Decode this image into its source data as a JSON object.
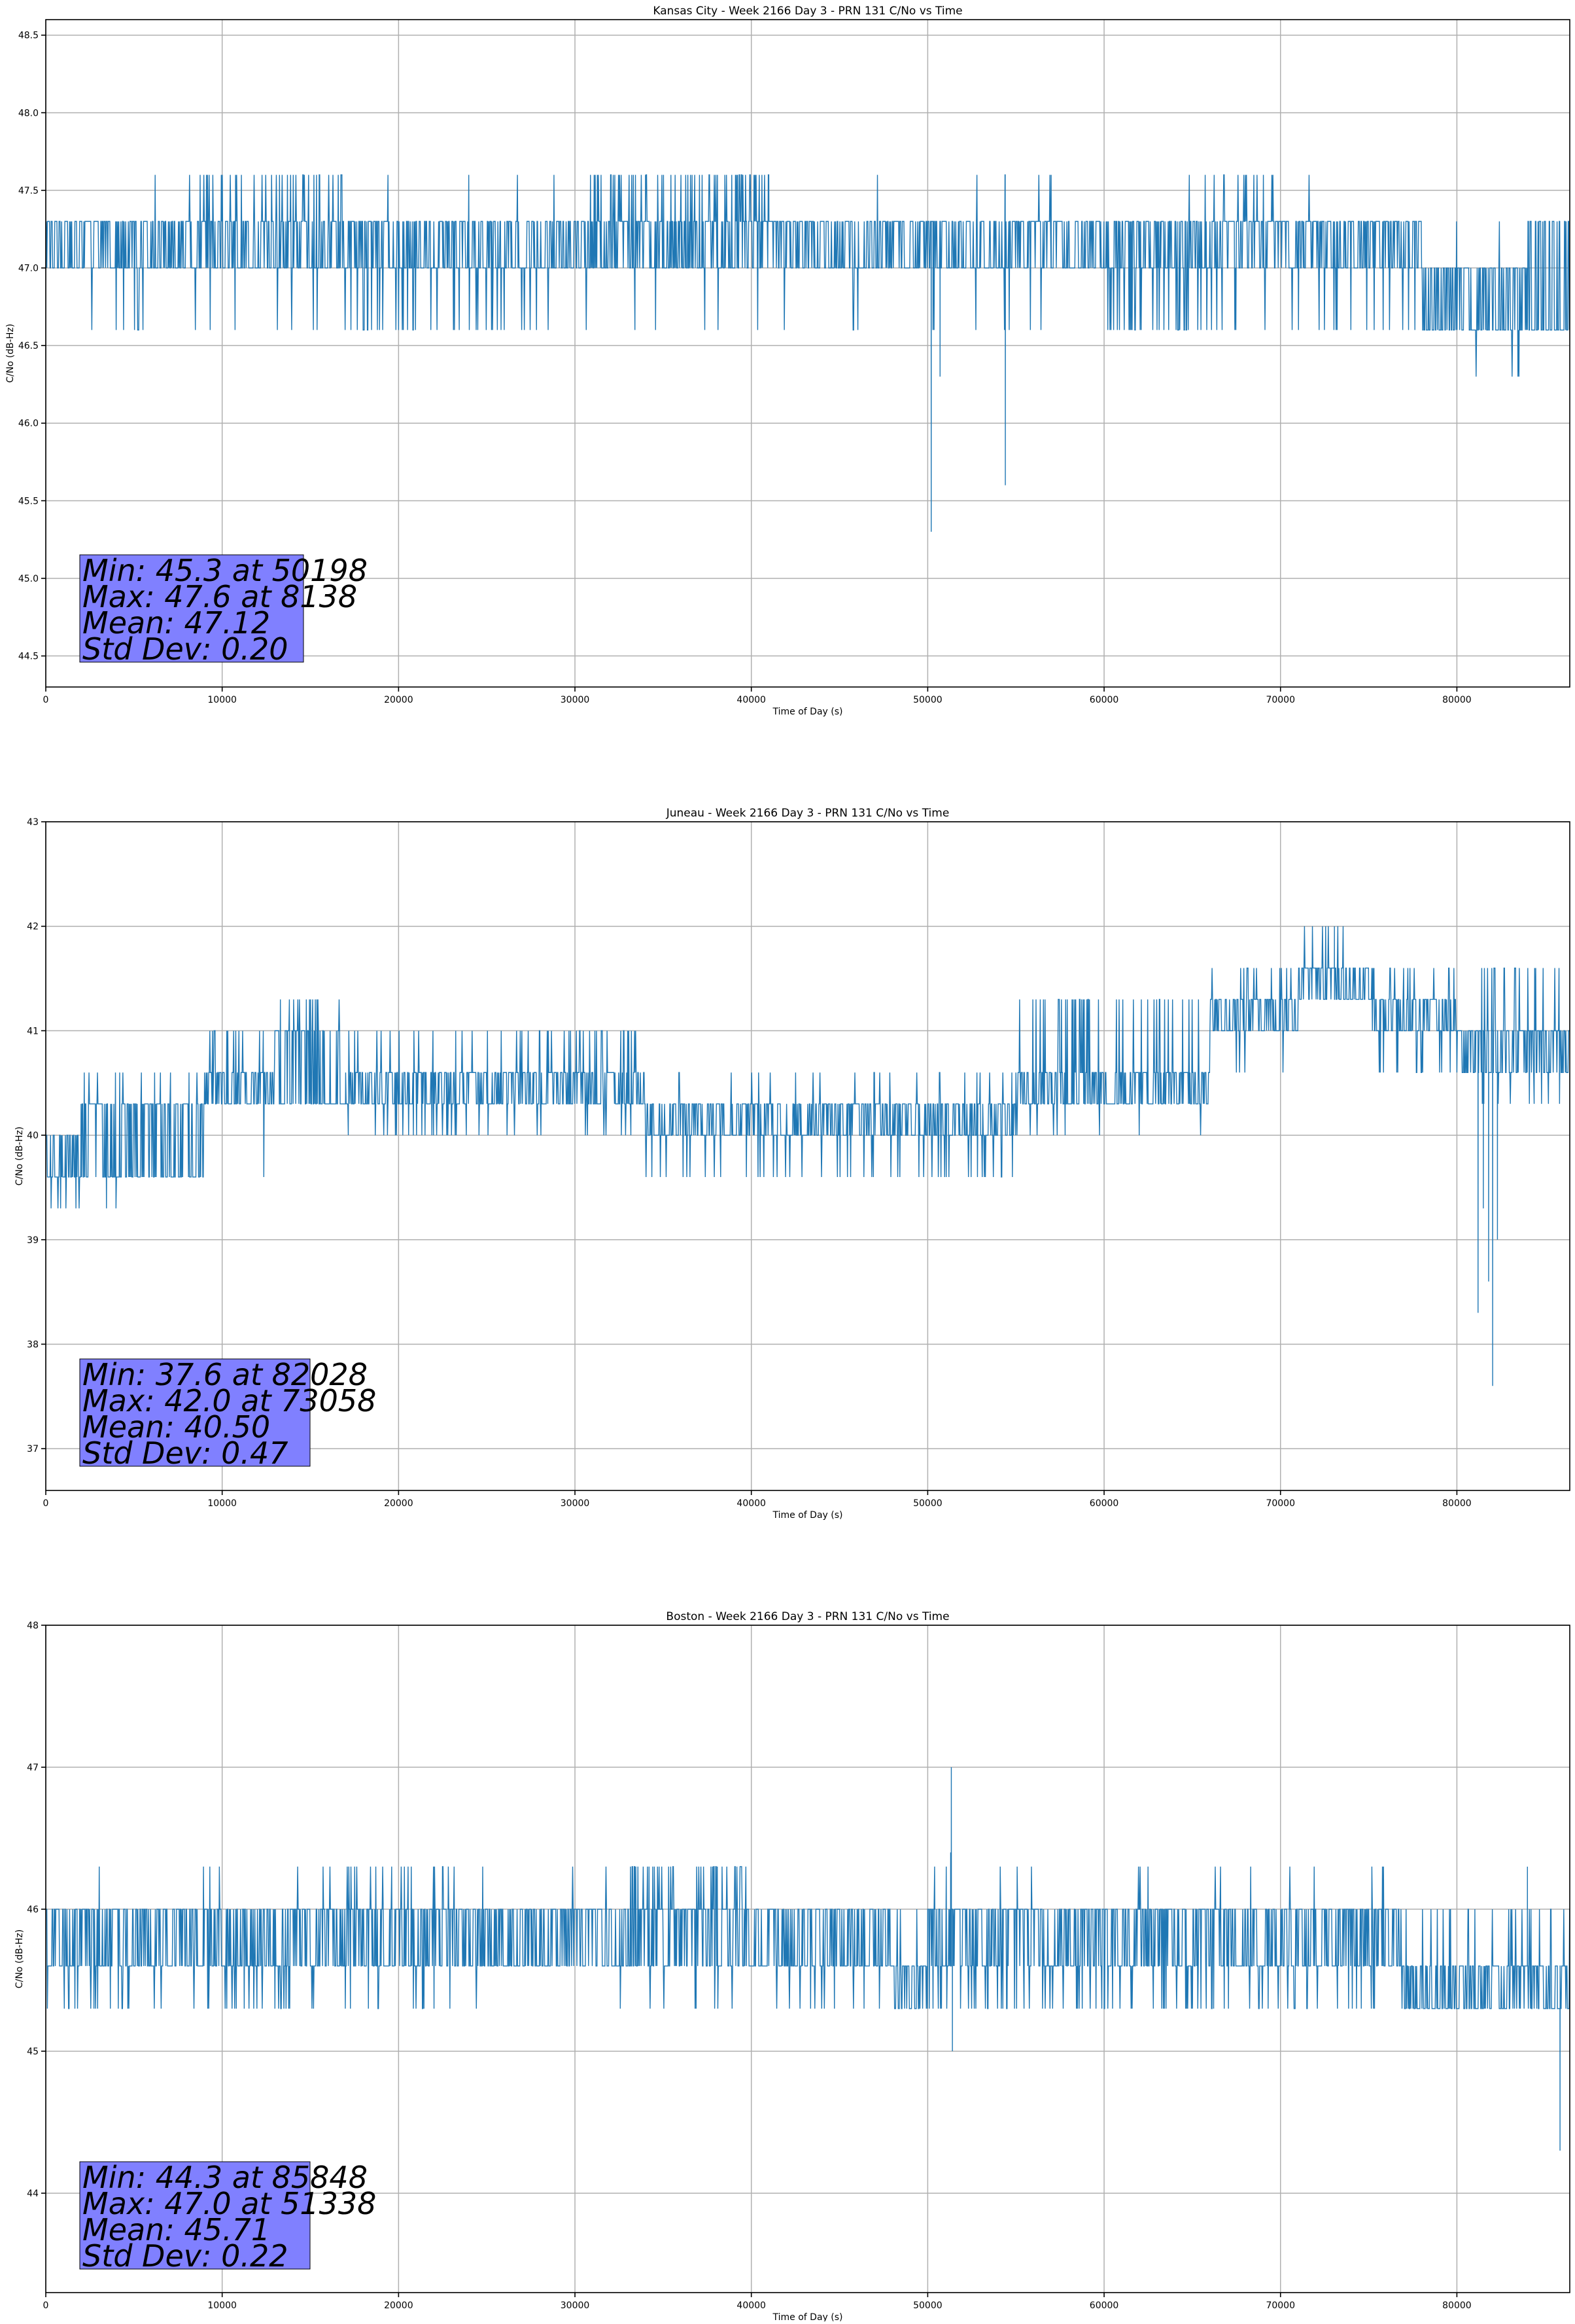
{
  "chart_data": [
    {
      "type": "line",
      "title": "Kansas City - Week 2166 Day 3 - PRN 131 C/No vs Time",
      "xlabel": "Time of Day (s)",
      "ylabel": "C/No (dB-Hz)",
      "xlim": [
        0,
        86400
      ],
      "ylim": [
        44.3,
        48.6
      ],
      "xticks": [
        0,
        10000,
        20000,
        30000,
        40000,
        50000,
        60000,
        70000,
        80000
      ],
      "yticks": [
        44.5,
        45.0,
        45.5,
        46.0,
        46.5,
        47.0,
        47.5,
        48.0,
        48.5
      ],
      "ytick_labels": [
        "44.5",
        "45.0",
        "45.5",
        "46.0",
        "46.5",
        "47.0",
        "47.5",
        "48.0",
        "48.5"
      ],
      "grid": true,
      "color": "#1f77b4",
      "series_profile": {
        "segments": [
          {
            "x": [
              0,
              5000
            ],
            "low": 47.0,
            "high": 47.3,
            "down": 46.6,
            "up": 47.6,
            "down_rate": 0.02,
            "up_rate": 0.0
          },
          {
            "x": [
              5000,
              8000
            ],
            "low": 47.0,
            "high": 47.3,
            "down": 46.6,
            "up": 47.6,
            "down_rate": 0.3,
            "up_rate": 0.05
          },
          {
            "x": [
              8000,
              17000
            ],
            "low": 47.0,
            "high": 47.3,
            "down": 46.6,
            "up": 47.6,
            "down_rate": 0.08,
            "up_rate": 0.45
          },
          {
            "x": [
              17000,
              22000
            ],
            "low": 47.0,
            "high": 47.3,
            "down": 46.6,
            "up": 47.6,
            "down_rate": 0.4,
            "up_rate": 0.05
          },
          {
            "x": [
              22000,
              31000
            ],
            "low": 47.0,
            "high": 47.3,
            "down": 46.6,
            "up": 47.6,
            "down_rate": 0.25,
            "up_rate": 0.03
          },
          {
            "x": [
              31000,
              41000
            ],
            "low": 47.0,
            "high": 47.3,
            "down": 46.6,
            "up": 47.6,
            "down_rate": 0.05,
            "up_rate": 0.75
          },
          {
            "x": [
              41000,
              60000
            ],
            "low": 47.0,
            "high": 47.3,
            "down": 46.6,
            "up": 47.6,
            "down_rate": 0.06,
            "up_rate": 0.02
          },
          {
            "x": [
              60000,
              66000
            ],
            "low": 47.0,
            "high": 47.3,
            "down": 46.6,
            "up": 47.6,
            "down_rate": 0.55,
            "up_rate": 0.05
          },
          {
            "x": [
              66000,
              70000
            ],
            "low": 47.0,
            "high": 47.3,
            "down": 46.6,
            "up": 47.6,
            "down_rate": 0.15,
            "up_rate": 0.3
          },
          {
            "x": [
              70000,
              78000
            ],
            "low": 47.0,
            "high": 47.3,
            "down": 46.6,
            "up": 47.6,
            "down_rate": 0.25,
            "up_rate": 0.02
          },
          {
            "x": [
              78000,
              84000
            ],
            "low": 46.6,
            "high": 47.0,
            "down": 46.3,
            "up": 47.3,
            "down_rate": 0.04,
            "up_rate": 0.03
          },
          {
            "x": [
              84000,
              86400
            ],
            "low": 46.6,
            "high": 47.3,
            "down": 46.6,
            "up": 47.3,
            "down_rate": 0.2,
            "up_rate": 0.0
          }
        ],
        "spikes": [
          [
            50198,
            45.3
          ],
          [
            50300,
            46.6
          ],
          [
            50700,
            46.3
          ],
          [
            54400,
            45.6
          ],
          [
            34000,
            47.6
          ],
          [
            57000,
            47.6
          ]
        ]
      },
      "stats": [
        "Min: 45.3 at 50198",
        "Max: 47.6 at 8138",
        "Mean: 47.12",
        "Std Dev: 0.20"
      ]
    },
    {
      "type": "line",
      "title": "Juneau - Week 2166 Day 3 - PRN 131 C/No vs Time",
      "xlabel": "Time of Day (s)",
      "ylabel": "C/No (dB-Hz)",
      "xlim": [
        0,
        86400
      ],
      "ylim": [
        36.6,
        43.0
      ],
      "xticks": [
        0,
        10000,
        20000,
        30000,
        40000,
        50000,
        60000,
        70000,
        80000
      ],
      "yticks": [
        37,
        38,
        39,
        40,
        41,
        42,
        43
      ],
      "ytick_labels": [
        "37",
        "38",
        "39",
        "40",
        "41",
        "42",
        "43"
      ],
      "grid": true,
      "color": "#1f77b4",
      "series_profile": {
        "segments": [
          {
            "x": [
              0,
              2000
            ],
            "low": 39.6,
            "high": 40.0,
            "down": 39.3,
            "up": 40.0,
            "down_rate": 0.3,
            "up_rate": 0.0
          },
          {
            "x": [
              2000,
              5000
            ],
            "low": 39.6,
            "high": 40.3,
            "down": 39.3,
            "up": 40.6,
            "down_rate": 0.08,
            "up_rate": 0.15
          },
          {
            "x": [
              5000,
              9000
            ],
            "low": 39.6,
            "high": 40.3,
            "down": 39.6,
            "up": 40.6,
            "down_rate": 0.1,
            "up_rate": 0.2
          },
          {
            "x": [
              9000,
              13000
            ],
            "low": 40.3,
            "high": 40.6,
            "down": 39.6,
            "up": 41.0,
            "down_rate": 0.05,
            "up_rate": 0.3
          },
          {
            "x": [
              13000,
              17000
            ],
            "low": 40.3,
            "high": 41.0,
            "down": 40.3,
            "up": 41.3,
            "down_rate": 0.1,
            "up_rate": 0.35
          },
          {
            "x": [
              17000,
              29000
            ],
            "low": 40.3,
            "high": 40.6,
            "down": 40.0,
            "up": 41.0,
            "down_rate": 0.2,
            "up_rate": 0.2
          },
          {
            "x": [
              29000,
              34000
            ],
            "low": 40.3,
            "high": 40.6,
            "down": 40.0,
            "up": 41.0,
            "down_rate": 0.2,
            "up_rate": 0.35
          },
          {
            "x": [
              34000,
              39000
            ],
            "low": 40.0,
            "high": 40.3,
            "down": 39.6,
            "up": 40.6,
            "down_rate": 0.25,
            "up_rate": 0.1
          },
          {
            "x": [
              39000,
              50000
            ],
            "low": 40.0,
            "high": 40.3,
            "down": 39.6,
            "up": 40.6,
            "down_rate": 0.2,
            "up_rate": 0.15
          },
          {
            "x": [
              50000,
              55000
            ],
            "low": 40.0,
            "high": 40.3,
            "down": 39.6,
            "up": 40.6,
            "down_rate": 0.25,
            "up_rate": 0.15
          },
          {
            "x": [
              55000,
              66000
            ],
            "low": 40.3,
            "high": 40.6,
            "down": 40.0,
            "up": 41.3,
            "down_rate": 0.1,
            "up_rate": 0.5
          },
          {
            "x": [
              66000,
              71000
            ],
            "low": 41.0,
            "high": 41.3,
            "down": 40.6,
            "up": 41.6,
            "down_rate": 0.1,
            "up_rate": 0.35
          },
          {
            "x": [
              71000,
              75000
            ],
            "low": 41.3,
            "high": 41.6,
            "down": 40.6,
            "up": 42.0,
            "down_rate": 0.1,
            "up_rate": 0.2
          },
          {
            "x": [
              75000,
              80000
            ],
            "low": 41.0,
            "high": 41.3,
            "down": 40.6,
            "up": 41.6,
            "down_rate": 0.3,
            "up_rate": 0.3
          },
          {
            "x": [
              80000,
              86400
            ],
            "low": 40.6,
            "high": 41.0,
            "down": 40.3,
            "up": 41.6,
            "down_rate": 0.2,
            "up_rate": 0.3
          }
        ],
        "spikes": [
          [
            82028,
            37.6
          ],
          [
            81200,
            38.3
          ],
          [
            81800,
            38.6
          ],
          [
            81500,
            39.3
          ],
          [
            82300,
            39.0
          ],
          [
            73058,
            42.0
          ]
        ]
      },
      "stats": [
        "Min: 37.6 at 82028",
        "Max: 42.0 at 73058",
        "Mean: 40.50",
        "Std Dev: 0.47"
      ]
    },
    {
      "type": "line",
      "title": "Boston - Week 2166 Day 3 - PRN 131 C/No vs Time",
      "xlabel": "Time of Day (s)",
      "ylabel": "C/No (dB-Hz)",
      "xlim": [
        0,
        86400
      ],
      "ylim": [
        43.3,
        48.0
      ],
      "xticks": [
        0,
        10000,
        20000,
        30000,
        40000,
        50000,
        60000,
        70000,
        80000
      ],
      "yticks": [
        44,
        45,
        46,
        47,
        48
      ],
      "ytick_labels": [
        "44",
        "45",
        "46",
        "47",
        "48"
      ],
      "grid": true,
      "color": "#1f77b4",
      "series_profile": {
        "segments": [
          {
            "x": [
              0,
              3000
            ],
            "low": 45.6,
            "high": 46.0,
            "down": 45.3,
            "up": 46.0,
            "down_rate": 0.3,
            "up_rate": 0.0
          },
          {
            "x": [
              3000,
              17000
            ],
            "low": 45.6,
            "high": 46.0,
            "down": 45.3,
            "up": 46.3,
            "down_rate": 0.3,
            "up_rate": 0.05
          },
          {
            "x": [
              17000,
              23000
            ],
            "low": 45.6,
            "high": 46.0,
            "down": 45.3,
            "up": 46.3,
            "down_rate": 0.15,
            "up_rate": 0.35
          },
          {
            "x": [
              23000,
              33000
            ],
            "low": 45.6,
            "high": 46.0,
            "down": 45.3,
            "up": 46.3,
            "down_rate": 0.05,
            "up_rate": 0.05
          },
          {
            "x": [
              33000,
              40000
            ],
            "low": 45.6,
            "high": 46.0,
            "down": 45.3,
            "up": 46.3,
            "down_rate": 0.1,
            "up_rate": 0.55
          },
          {
            "x": [
              40000,
              48000
            ],
            "low": 45.6,
            "high": 46.0,
            "down": 45.3,
            "up": 46.3,
            "down_rate": 0.2,
            "up_rate": 0.03
          },
          {
            "x": [
              48000,
              50000
            ],
            "low": 45.3,
            "high": 45.6,
            "down": 45.3,
            "up": 46.0,
            "down_rate": 0.0,
            "up_rate": 0.3
          },
          {
            "x": [
              50000,
              60000
            ],
            "low": 45.6,
            "high": 46.0,
            "down": 45.3,
            "up": 46.3,
            "down_rate": 0.4,
            "up_rate": 0.03
          },
          {
            "x": [
              60000,
              77000
            ],
            "low": 45.6,
            "high": 46.0,
            "down": 45.3,
            "up": 46.3,
            "down_rate": 0.35,
            "up_rate": 0.06
          },
          {
            "x": [
              77000,
              86400
            ],
            "low": 45.3,
            "high": 45.6,
            "down": 45.3,
            "up": 46.0,
            "down_rate": 0.0,
            "up_rate": 0.35
          }
        ],
        "spikes": [
          [
            51338,
            47.0
          ],
          [
            51300,
            46.4
          ],
          [
            51400,
            45.0
          ],
          [
            85848,
            44.3
          ],
          [
            85700,
            45.3
          ],
          [
            84000,
            46.3
          ]
        ]
      },
      "stats": [
        "Min: 44.3 at 85848",
        "Max: 47.0 at 51338",
        "Mean: 45.71",
        "Std Dev: 0.22"
      ]
    }
  ]
}
